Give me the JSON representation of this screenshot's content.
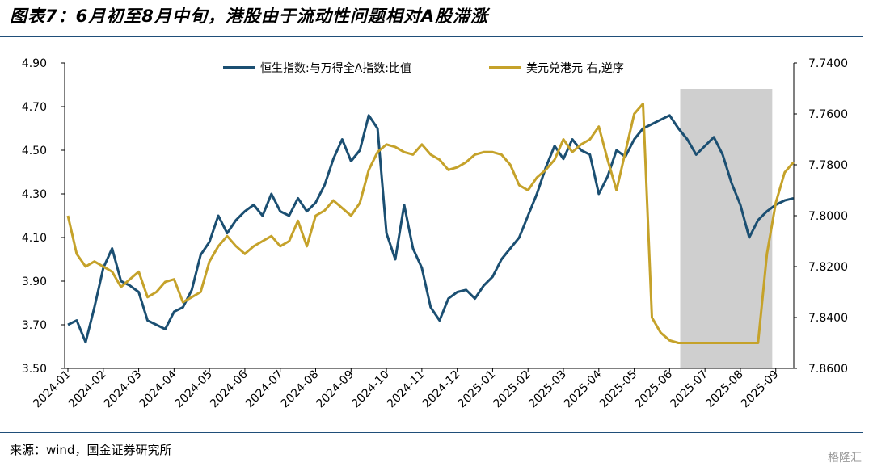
{
  "header": {
    "title": "图表7：6月初至8月中旬，港股由于流动性问题相对A股滞涨"
  },
  "footer": {
    "source": "来源：wind，国金证券研究所",
    "watermark": "格隆汇"
  },
  "chart_data": {
    "type": "line",
    "x": [
      "2024-01",
      "2024-02",
      "2024-03",
      "2024-04",
      "2024-05",
      "2024-06",
      "2024-07",
      "2024-08",
      "2024-09",
      "2024-10",
      "2024-11",
      "2024-12",
      "2025-01",
      "2025-02",
      "2025-03",
      "2025-04",
      "2025-05",
      "2025-06",
      "2025-07",
      "2025-08",
      "2025-09"
    ],
    "y_left": {
      "ylim": [
        3.5,
        4.9
      ],
      "ticks": [
        "3.50",
        "3.70",
        "3.90",
        "4.10",
        "4.30",
        "4.50",
        "4.70",
        "4.90"
      ]
    },
    "y_right": {
      "ylim": [
        7.86,
        7.74
      ],
      "reversed": true,
      "ticks": [
        "7.8600",
        "7.8400",
        "7.8200",
        "7.8000",
        "7.7800",
        "7.7600",
        "7.7400"
      ]
    },
    "highlight": {
      "from": 17.3,
      "to": 19.9,
      "color": "#cfcfcf"
    },
    "series": [
      {
        "name": "恒生指数:与万得全A指数:比值",
        "axis": "left",
        "color": "#1b4f72",
        "x": [
          0,
          0.25,
          0.5,
          0.75,
          1,
          1.25,
          1.5,
          1.75,
          2,
          2.25,
          2.5,
          2.75,
          3,
          3.25,
          3.5,
          3.75,
          4,
          4.25,
          4.5,
          4.75,
          5,
          5.25,
          5.5,
          5.75,
          6,
          6.25,
          6.5,
          6.75,
          7,
          7.25,
          7.5,
          7.75,
          8,
          8.25,
          8.5,
          8.75,
          9,
          9.25,
          9.5,
          9.75,
          10,
          10.25,
          10.5,
          10.75,
          11,
          11.25,
          11.5,
          11.75,
          12,
          12.25,
          12.5,
          12.75,
          13,
          13.25,
          13.5,
          13.75,
          14,
          14.25,
          14.5,
          14.75,
          15,
          15.25,
          15.5,
          15.75,
          16,
          16.25,
          16.5,
          16.75,
          17,
          17.25,
          17.5,
          17.75,
          18,
          18.25,
          18.5,
          18.75,
          19,
          19.25,
          19.5,
          19.75,
          20,
          20.25,
          20.5
        ],
        "values": [
          3.7,
          3.72,
          3.62,
          3.78,
          3.96,
          4.05,
          3.9,
          3.88,
          3.85,
          3.72,
          3.7,
          3.68,
          3.76,
          3.78,
          3.86,
          4.02,
          4.08,
          4.2,
          4.12,
          4.18,
          4.22,
          4.25,
          4.2,
          4.3,
          4.22,
          4.2,
          4.28,
          4.22,
          4.26,
          4.34,
          4.46,
          4.55,
          4.45,
          4.5,
          4.66,
          4.6,
          4.12,
          4.0,
          4.25,
          4.05,
          3.96,
          3.78,
          3.72,
          3.82,
          3.85,
          3.86,
          3.82,
          3.88,
          3.92,
          4.0,
          4.05,
          4.1,
          4.2,
          4.3,
          4.42,
          4.52,
          4.46,
          4.55,
          4.5,
          4.48,
          4.3,
          4.38,
          4.5,
          4.47,
          4.55,
          4.6,
          4.62,
          4.64,
          4.66,
          4.6,
          4.55,
          4.48,
          4.52,
          4.56,
          4.48,
          4.35,
          4.25,
          4.1,
          4.18,
          4.22,
          4.25,
          4.27,
          4.28
        ]
      },
      {
        "name": "美元兑港元 右,逆序",
        "axis": "right",
        "color": "#c5a22a",
        "x": [
          0,
          0.25,
          0.5,
          0.75,
          1,
          1.25,
          1.5,
          1.75,
          2,
          2.25,
          2.5,
          2.75,
          3,
          3.25,
          3.5,
          3.75,
          4,
          4.25,
          4.5,
          4.75,
          5,
          5.25,
          5.5,
          5.75,
          6,
          6.25,
          6.5,
          6.75,
          7,
          7.25,
          7.5,
          7.75,
          8,
          8.25,
          8.5,
          8.75,
          9,
          9.25,
          9.5,
          9.75,
          10,
          10.25,
          10.5,
          10.75,
          11,
          11.25,
          11.5,
          11.75,
          12,
          12.25,
          12.5,
          12.75,
          13,
          13.25,
          13.5,
          13.75,
          14,
          14.25,
          14.5,
          14.75,
          15,
          15.25,
          15.5,
          15.75,
          16,
          16.25,
          16.5,
          16.75,
          17,
          17.25,
          17.5,
          17.75,
          18,
          18.25,
          18.5,
          18.75,
          19,
          19.25,
          19.5,
          19.75,
          20,
          20.25,
          20.5
        ],
        "values": [
          7.8,
          7.815,
          7.82,
          7.818,
          7.82,
          7.822,
          7.828,
          7.825,
          7.822,
          7.832,
          7.83,
          7.826,
          7.825,
          7.834,
          7.832,
          7.83,
          7.818,
          7.812,
          7.808,
          7.812,
          7.815,
          7.812,
          7.81,
          7.808,
          7.812,
          7.81,
          7.802,
          7.812,
          7.8,
          7.798,
          7.794,
          7.797,
          7.8,
          7.795,
          7.782,
          7.775,
          7.772,
          7.773,
          7.775,
          7.776,
          7.772,
          7.776,
          7.778,
          7.782,
          7.781,
          7.779,
          7.776,
          7.775,
          7.775,
          7.776,
          7.78,
          7.788,
          7.79,
          7.785,
          7.782,
          7.778,
          7.77,
          7.775,
          7.772,
          7.77,
          7.765,
          7.778,
          7.79,
          7.775,
          7.76,
          7.756,
          7.84,
          7.846,
          7.849,
          7.85,
          7.85,
          7.85,
          7.85,
          7.85,
          7.85,
          7.85,
          7.85,
          7.85,
          7.85,
          7.815,
          7.795,
          7.783,
          7.779
        ]
      }
    ]
  }
}
